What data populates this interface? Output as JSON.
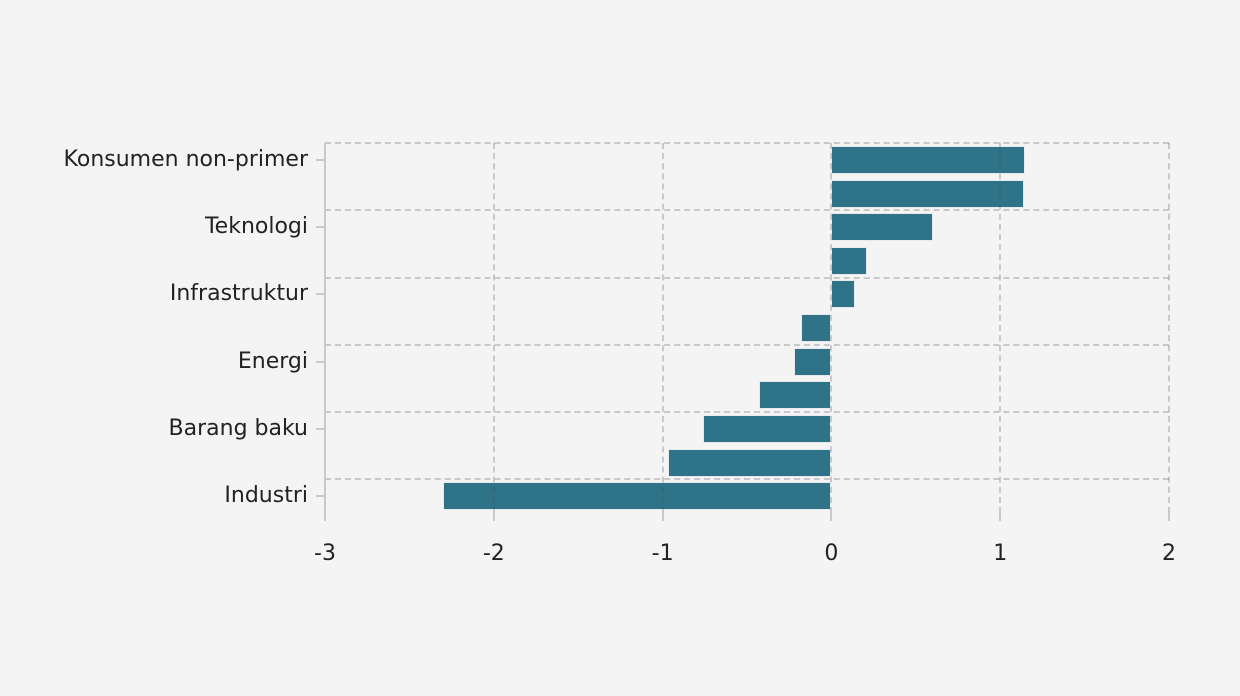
{
  "chart_data": {
    "type": "bar",
    "orientation": "horizontal",
    "title": "",
    "xlabel": "",
    "ylabel": "",
    "xlim": [
      -3,
      2
    ],
    "x_ticks": [
      "-3",
      "-2",
      "-1",
      "0",
      "1",
      "2"
    ],
    "x_tick_values": [
      -3,
      -2,
      -1,
      0,
      1,
      2
    ],
    "grid": "dashed, horizontal and vertical, drawn over bars",
    "legend_position": "none",
    "bars": [
      {
        "label": "Konsumen non-primer",
        "value": 1.15
      },
      {
        "label": "",
        "value": 1.14
      },
      {
        "label": "Teknologi",
        "value": 0.6
      },
      {
        "label": "",
        "value": 0.21
      },
      {
        "label": "Infrastruktur",
        "value": 0.14
      },
      {
        "label": "",
        "value": -0.18
      },
      {
        "label": "Energi",
        "value": -0.22
      },
      {
        "label": "",
        "value": -0.43
      },
      {
        "label": "Barang baku",
        "value": -0.76
      },
      {
        "label": "",
        "value": -0.97
      },
      {
        "label": "Industri",
        "value": -2.3
      }
    ],
    "category_labels": [
      "Konsumen non-primer",
      "Teknologi",
      "Infrastruktur",
      "Energi",
      "Barang baku",
      "Industri"
    ],
    "colors": {
      "bar": "#2f7389",
      "bar_edge": "#e7ebef",
      "background": "#f4f4f5",
      "axis": "#c9c9cc",
      "text": "#222222"
    }
  }
}
